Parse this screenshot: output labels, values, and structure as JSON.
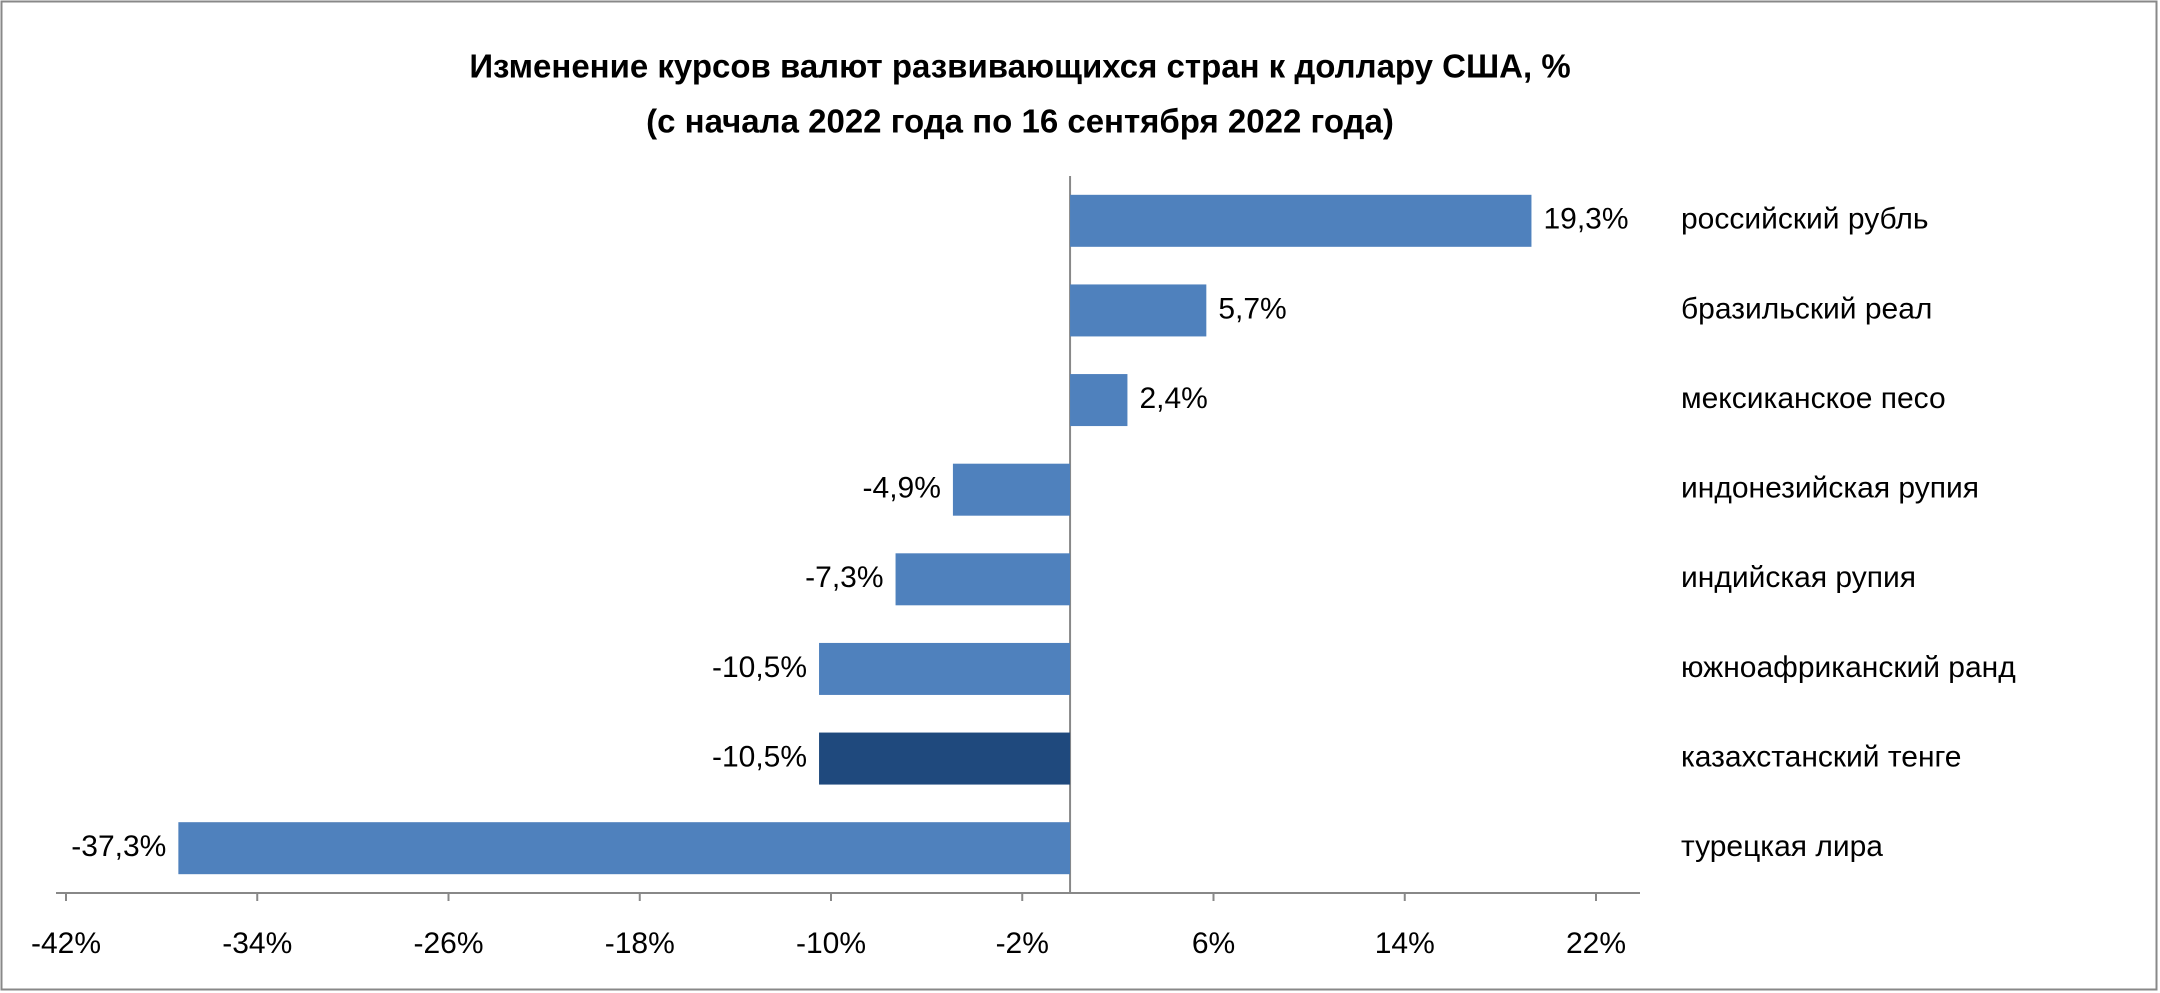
{
  "chart_data": {
    "type": "hbar",
    "title": "Изменение курсов валют развивающихся стран к доллару США, %",
    "subtitle": "(с начала 2022 года по 16 сентября 2022 года)",
    "categories": [
      "российский рубль",
      "бразильский реал",
      "мексиканское песо",
      "индонезийская рупия",
      "индийская рупия",
      "южноафриканский ранд",
      "казахстанский тенге",
      "турецкая лира"
    ],
    "values": [
      19.3,
      5.7,
      2.4,
      -4.9,
      -7.3,
      -10.5,
      -10.5,
      -37.3
    ],
    "value_labels": [
      "19,3%",
      "5,7%",
      "2,4%",
      "-4,9%",
      "-7,3%",
      "-10,5%",
      "-10,5%",
      "-37,3%"
    ],
    "colors": [
      "#4f81bd",
      "#4f81bd",
      "#4f81bd",
      "#4f81bd",
      "#4f81bd",
      "#4f81bd",
      "#1f497d",
      "#4f81bd"
    ],
    "xlim": [
      -42,
      22
    ],
    "xticks": [
      {
        "value": -42,
        "label": "-42%"
      },
      {
        "value": -34,
        "label": "-34%"
      },
      {
        "value": -26,
        "label": "-26%"
      },
      {
        "value": -18,
        "label": "-18%"
      },
      {
        "value": -10,
        "label": "-10%"
      },
      {
        "value": -2,
        "label": "-2%"
      },
      {
        "value": 6,
        "label": "6%"
      },
      {
        "value": 14,
        "label": "14%"
      },
      {
        "value": 22,
        "label": "22%"
      }
    ],
    "grid": false
  }
}
